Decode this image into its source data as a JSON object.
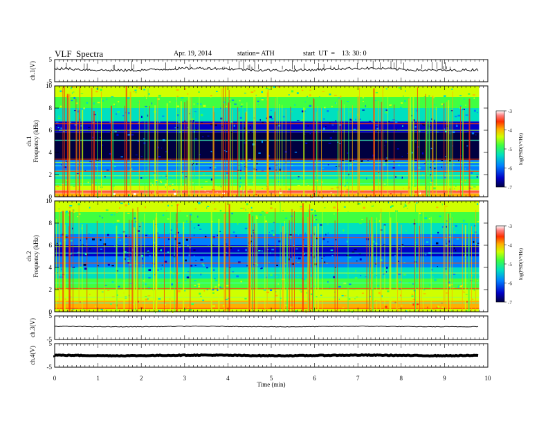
{
  "header": {
    "title": "VLF  Spectra",
    "date": "Apr. 19, 2014",
    "station": "station= ATH",
    "start": "start  UT  =    13: 30: 0"
  },
  "chart_data": [
    {
      "type": "line",
      "panel": "ch1-waveform",
      "ylabel": "ch.1(V)",
      "ylim": [
        -5,
        5
      ],
      "yticks": [
        "5",
        "-5"
      ],
      "xlim": [
        0,
        10
      ],
      "trace": "noisy waveform around ~0.6 V with numerous upward spikes"
    },
    {
      "type": "heatmap",
      "panel": "ch1-spectrogram",
      "ylabel": "ch.1\nFrequency (kHz)",
      "ylim": [
        0,
        10
      ],
      "yticks": [
        "0",
        "2",
        "4",
        "6",
        "8",
        "10"
      ],
      "xlim": [
        0,
        10
      ],
      "colorbar": {
        "label": "log(PSD(V²/Hz)",
        "range": [
          -7,
          -3
        ],
        "ticks": [
          "-3",
          "-4",
          "-5",
          "-6",
          "-7"
        ],
        "colormap": [
          "#000040",
          "#0000c8",
          "#0080ff",
          "#00e0c0",
          "#40ff40",
          "#d0ff00",
          "#ffb000",
          "#ff3000",
          "#ff8080",
          "#ffffff"
        ]
      }
    },
    {
      "type": "heatmap",
      "panel": "ch2-spectrogram",
      "ylabel": "ch.2\nFrequency (kHz)",
      "ylim": [
        0,
        10
      ],
      "yticks": [
        "0",
        "2",
        "4",
        "6",
        "8",
        "10"
      ],
      "xlim": [
        0,
        10
      ],
      "colorbar": {
        "label": "log(PSD(V²/Hz)",
        "range": [
          -7,
          -3
        ],
        "ticks": [
          "-3",
          "-4",
          "-5",
          "-6",
          "-7"
        ]
      }
    },
    {
      "type": "line",
      "panel": "ch3-waveform",
      "ylabel": "ch.3(V)",
      "ylim": [
        -5,
        5
      ],
      "yticks": [
        "5",
        "-5"
      ],
      "xlim": [
        0,
        10
      ],
      "trace": "flat line near 0.5 V"
    },
    {
      "type": "line",
      "panel": "ch4-waveform",
      "ylabel": "ch.4(V)",
      "ylim": [
        -5,
        5
      ],
      "yticks": [
        "5",
        "-5"
      ],
      "xlim": [
        0,
        10
      ],
      "trace": "thick flat line near 0 V"
    }
  ],
  "x_axis": {
    "label": "Time  (min)",
    "ticks": [
      "0",
      "1",
      "2",
      "3",
      "4",
      "5",
      "6",
      "7",
      "8",
      "9",
      "10"
    ],
    "range": [
      0,
      10
    ],
    "data_end": 9.8
  }
}
